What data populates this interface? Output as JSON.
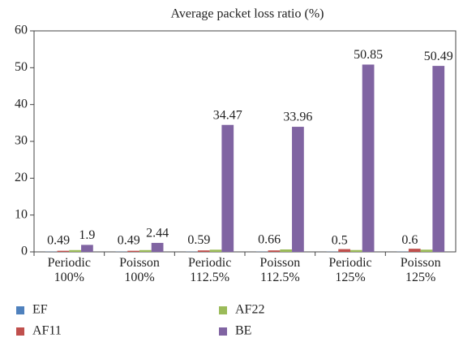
{
  "chart_data": {
    "type": "bar",
    "title": "Average packet loss ratio (%)",
    "categories": [
      [
        "Periodic",
        "100%"
      ],
      [
        "Poisson",
        "100%"
      ],
      [
        "Periodic",
        "112.5%"
      ],
      [
        "Poisson",
        "112.5%"
      ],
      [
        "Periodic",
        "125%"
      ],
      [
        "Poisson",
        "125%"
      ]
    ],
    "series": [
      {
        "name": "EF",
        "color": "#4f81bd",
        "values": [
          0.05,
          0.05,
          0.05,
          0.05,
          0.05,
          0.05
        ]
      },
      {
        "name": "AF11",
        "color": "#c0504d",
        "values": [
          0.3,
          0.3,
          0.4,
          0.4,
          0.75,
          0.85
        ]
      },
      {
        "name": "AF22",
        "color": "#9bbb59",
        "values": [
          0.49,
          0.49,
          0.59,
          0.66,
          0.5,
          0.6
        ],
        "show_labels": true
      },
      {
        "name": "BE",
        "color": "#8064a2",
        "values": [
          1.9,
          2.44,
          34.47,
          33.96,
          50.85,
          50.49
        ],
        "show_labels": true
      }
    ],
    "ylim": [
      0,
      60
    ],
    "yticks": [
      0,
      10,
      20,
      30,
      40,
      50,
      60
    ],
    "legend": "bottom"
  }
}
